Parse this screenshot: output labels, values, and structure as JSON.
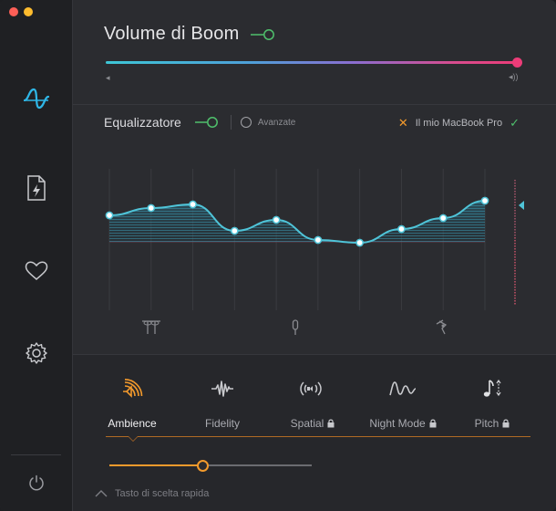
{
  "window": {
    "title": "Volume di Boom"
  },
  "colors": {
    "accent_green": "#4fc06c",
    "accent_orange": "#f39a2c",
    "slider_start": "#3ec6d6",
    "slider_end": "#ec3c78",
    "eq_cyan": "#4fc4d8"
  },
  "sidebar": {
    "items": [
      {
        "name": "boom-logo-icon"
      },
      {
        "name": "file-boost-icon"
      },
      {
        "name": "heart-icon"
      },
      {
        "name": "gear-icon"
      },
      {
        "name": "power-icon"
      }
    ]
  },
  "volume": {
    "level": 1.0
  },
  "equalizer": {
    "label": "Equalizzatore",
    "advanced_label": "Avanzate",
    "device_name": "Il mio MacBook Pro",
    "bands": [
      0.29,
      0.37,
      0.41,
      0.12,
      0.24,
      0.02,
      -0.01,
      0.14,
      0.26,
      0.45
    ],
    "band_icons": [
      "treble-icon",
      "mic-icon",
      "bass-icon"
    ]
  },
  "effects": {
    "items": [
      {
        "label": "Ambience",
        "icon": "ambience-icon",
        "locked": false
      },
      {
        "label": "Fidelity",
        "icon": "fidelity-icon",
        "locked": false
      },
      {
        "label": "Spatial",
        "icon": "spatial-icon",
        "locked": true
      },
      {
        "label": "Night Mode",
        "icon": "night-mode-icon",
        "locked": true
      },
      {
        "label": "Pitch",
        "icon": "pitch-icon",
        "locked": true
      }
    ],
    "ambience_level": 0.46
  },
  "hotkey": {
    "label": "Tasto di scelta rapida"
  }
}
